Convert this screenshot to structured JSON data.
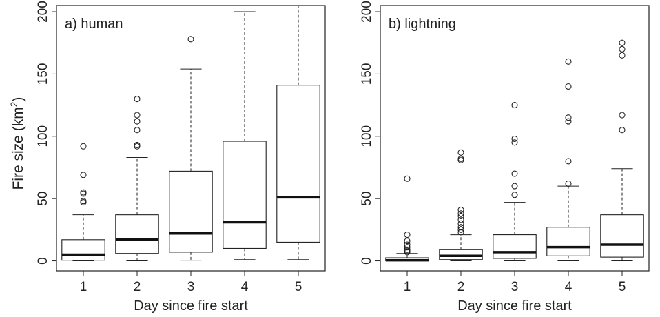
{
  "figure": {
    "ylabel_main": "Fire size (km",
    "ylabel_sup": "2",
    "ylabel_close": ")"
  },
  "chart_data": [
    {
      "type": "box",
      "title": "a) human",
      "xlabel": "Day since fire start",
      "ylabel": "Fire size (km2)",
      "ylim": [
        -8,
        205
      ],
      "yticks": [
        "0",
        "50",
        "100",
        "150",
        "200"
      ],
      "categories": [
        "1",
        "2",
        "3",
        "4",
        "5"
      ],
      "boxes": [
        {
          "category": "1",
          "min": 0,
          "q1": 0.5,
          "median": 5,
          "q3": 17,
          "max": 37,
          "outliers": [
            47,
            48,
            54,
            55,
            69,
            92
          ]
        },
        {
          "category": "2",
          "min": 0,
          "q1": 6,
          "median": 17,
          "q3": 37,
          "max": 83,
          "outliers": [
            92,
            93,
            105,
            112,
            117,
            130
          ]
        },
        {
          "category": "3",
          "min": 0.5,
          "q1": 7,
          "median": 22,
          "q3": 72,
          "max": 154,
          "outliers": [
            178
          ]
        },
        {
          "category": "4",
          "min": 1,
          "q1": 10,
          "median": 31,
          "q3": 96,
          "max": 200,
          "outliers": []
        },
        {
          "category": "5",
          "min": 1,
          "q1": 15,
          "median": 51,
          "q3": 141,
          "max": 205,
          "outliers": []
        }
      ]
    },
    {
      "type": "box",
      "title": "b) lightning",
      "xlabel": "Day since fire start",
      "ylabel": "Fire size (km2)",
      "ylim": [
        -8,
        205
      ],
      "yticks": [
        "0",
        "50",
        "100",
        "150",
        "200"
      ],
      "categories": [
        "1",
        "2",
        "3",
        "4",
        "5"
      ],
      "boxes": [
        {
          "category": "1",
          "min": 0,
          "q1": 0,
          "median": 0.5,
          "q3": 2.5,
          "max": 6,
          "outliers": [
            7,
            8,
            9,
            11,
            13,
            16,
            21,
            66
          ]
        },
        {
          "category": "2",
          "min": 0,
          "q1": 1,
          "median": 4,
          "q3": 9,
          "max": 21,
          "outliers": [
            23,
            25,
            27,
            30,
            33,
            36,
            38,
            41,
            81,
            82,
            87
          ]
        },
        {
          "category": "3",
          "min": 0,
          "q1": 2,
          "median": 7,
          "q3": 21,
          "max": 47,
          "outliers": [
            53,
            60,
            70,
            95,
            98,
            125
          ]
        },
        {
          "category": "4",
          "min": 0,
          "q1": 4,
          "median": 11,
          "q3": 27,
          "max": 60,
          "outliers": [
            62,
            80,
            112,
            115,
            140,
            160
          ]
        },
        {
          "category": "5",
          "min": 0,
          "q1": 3,
          "median": 13,
          "q3": 37,
          "max": 74,
          "outliers": [
            105,
            117,
            165,
            170,
            175
          ]
        }
      ]
    }
  ]
}
